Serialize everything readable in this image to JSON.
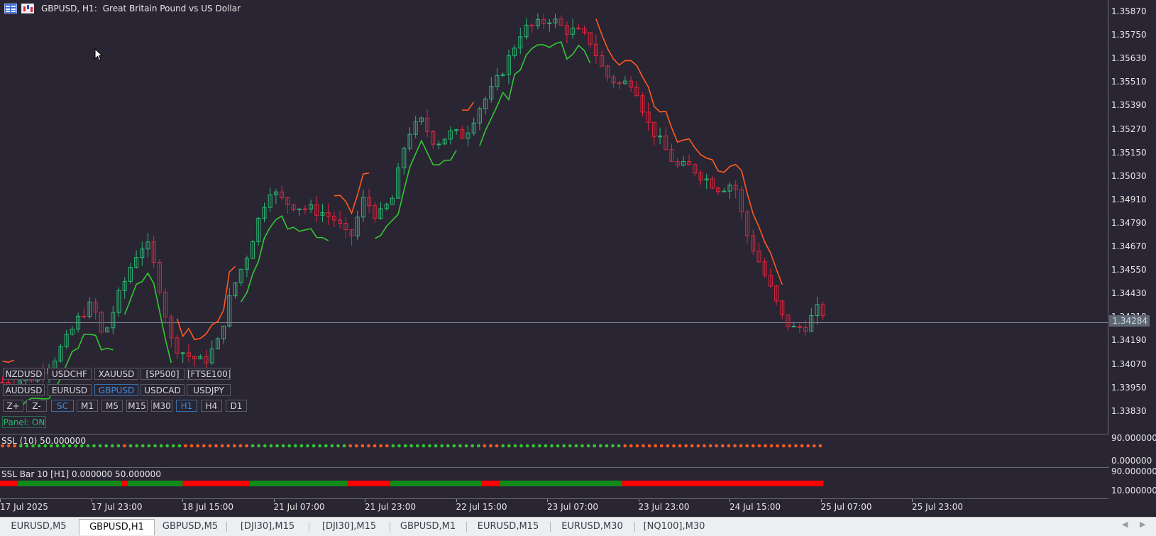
{
  "title": {
    "symbol": "GBPUSD, H1:",
    "description": "Great Britain Pound vs US Dollar"
  },
  "price_axis": [
    "1.35870",
    "1.35750",
    "1.35630",
    "1.35510",
    "1.35390",
    "1.35270",
    "1.35150",
    "1.35030",
    "1.34910",
    "1.34790",
    "1.34670",
    "1.34550",
    "1.34430",
    "1.34310",
    "1.34190",
    "1.34070",
    "1.33950",
    "1.33830"
  ],
  "current_price": "1.34284",
  "panel": {
    "row1": [
      "NZDUSD",
      "USDCHF",
      "XAUUSD",
      "[SP500]",
      "[FTSE100]"
    ],
    "row2": [
      "AUDUSD",
      "EURUSD",
      "GBPUSD",
      "USDCAD",
      "USDJPY"
    ],
    "row3": [
      "Z+",
      "Z-",
      "SC",
      "M1",
      "M5",
      "M15",
      "M30",
      "H1",
      "H4",
      "D1"
    ],
    "status": "Panel: ON"
  },
  "indicator1": {
    "label": "SSL (10) 50.000000",
    "scale_top": "90.000000",
    "scale_bottom": "0.000000"
  },
  "indicator2": {
    "label": "SSL Bar 10 [H1] 0.000000 50.000000",
    "scale_top": "90.000000",
    "scale_bottom": "10.000000"
  },
  "time_axis": [
    "17 Jul 2025",
    "17 Jul 23:00",
    "18 Jul 15:00",
    "21 Jul 07:00",
    "21 Jul 23:00",
    "22 Jul 15:00",
    "23 Jul 07:00",
    "23 Jul 23:00",
    "24 Jul 15:00",
    "25 Jul 07:00",
    "25 Jul 23:00"
  ],
  "tabs": [
    "EURUSD,M5",
    "GBPUSD,H1",
    "GBPUSD,M5",
    "[DJI30],M15",
    "[DJI30],M15",
    "GBPUSD,M1",
    "EURUSD,M15",
    "EURUSD,M30",
    "[NQ100],M30"
  ],
  "colors": {
    "bull": "#2bb673",
    "bear": "#e0243b",
    "ssl_up": "#32c832",
    "ssl_down": "#ff5a1e",
    "background": "#2a2533",
    "bar_green": "#118a1a",
    "bar_red": "#ff0000"
  },
  "ssl_segments": [
    {
      "state": "down",
      "bars": 3
    },
    {
      "state": "up",
      "bars": 17
    },
    {
      "state": "down",
      "bars": 1
    },
    {
      "state": "up",
      "bars": 9
    },
    {
      "state": "down",
      "bars": 11
    },
    {
      "state": "up",
      "bars": 16
    },
    {
      "state": "down",
      "bars": 7
    },
    {
      "state": "up",
      "bars": 15
    },
    {
      "state": "down",
      "bars": 3
    },
    {
      "state": "up",
      "bars": 20
    },
    {
      "state": "down",
      "bars": 33
    }
  ]
}
